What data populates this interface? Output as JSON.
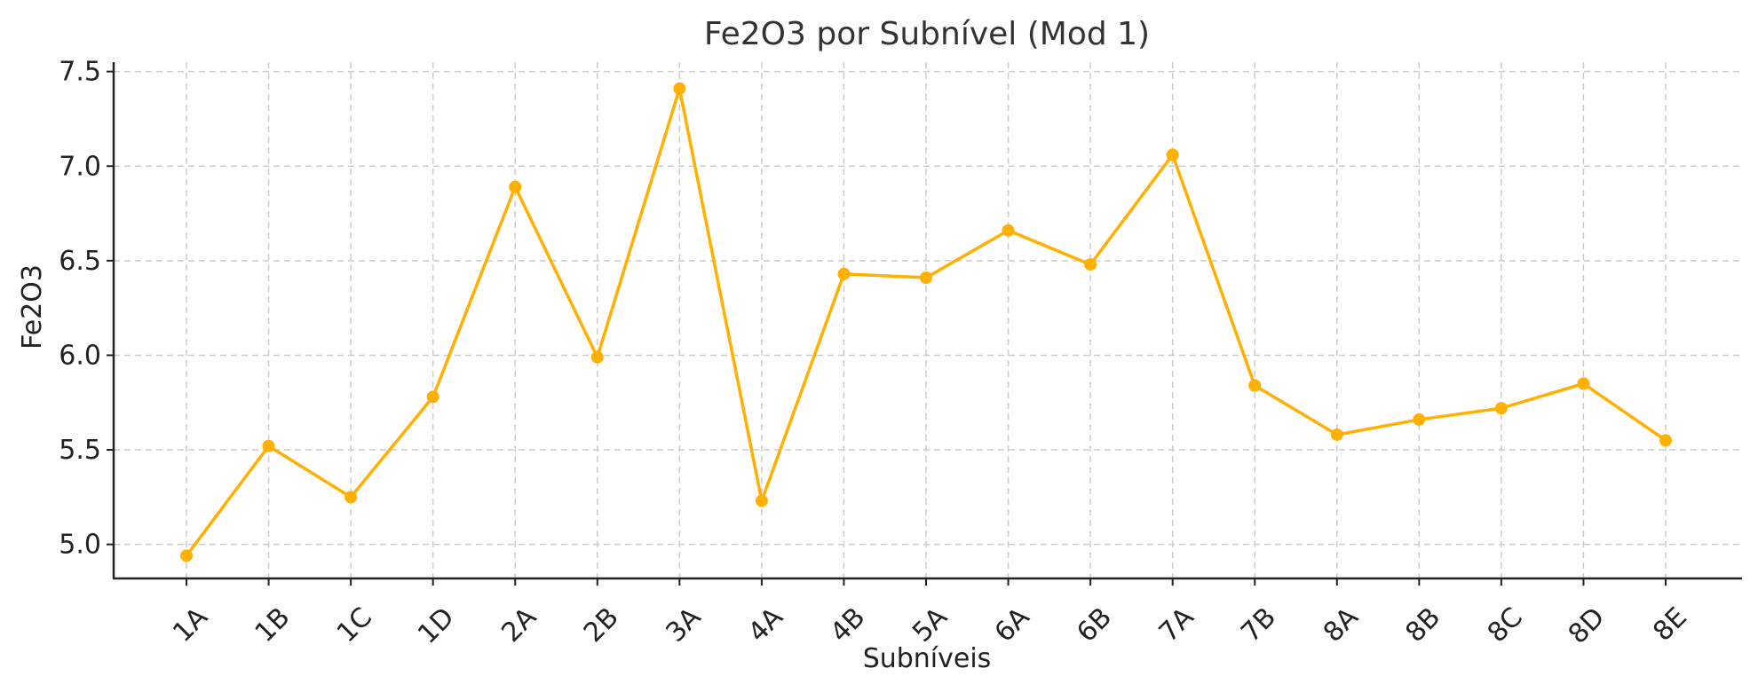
{
  "chart_data": {
    "type": "line",
    "title": "Fe2O3 por Subnível (Mod 1)",
    "xlabel": "Subníveis",
    "ylabel": "Fe2O3",
    "categories": [
      "1A",
      "1B",
      "1C",
      "1D",
      "2A",
      "2B",
      "3A",
      "4A",
      "4B",
      "5A",
      "6A",
      "6B",
      "7A",
      "7B",
      "8A",
      "8B",
      "8C",
      "8D",
      "8E"
    ],
    "series": [
      {
        "values": [
          4.94,
          5.52,
          5.25,
          5.78,
          6.89,
          5.99,
          7.41,
          5.23,
          6.43,
          6.41,
          6.66,
          6.48,
          7.06,
          5.84,
          5.58,
          5.66,
          5.72,
          5.85,
          5.55
        ],
        "color": "#FFB000"
      }
    ],
    "yticks": [
      "5.0",
      "5.5",
      "6.0",
      "6.5",
      "7.0",
      "7.5"
    ],
    "ylim": [
      4.82,
      7.55
    ],
    "grid": true
  }
}
